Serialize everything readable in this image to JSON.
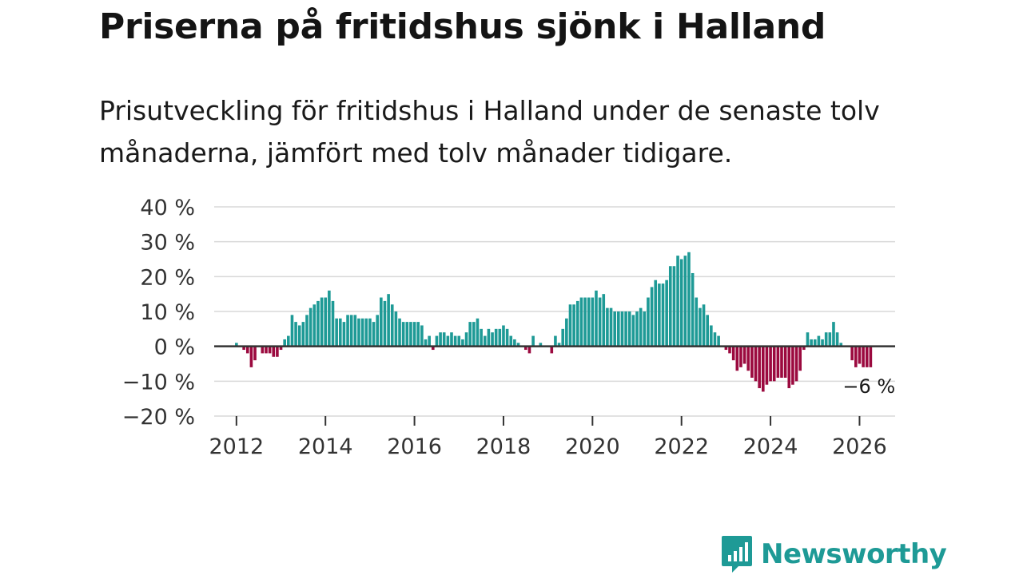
{
  "title": "Priserna på fritidshus sjönk i Halland",
  "subtitle": "Prisutveckling för fritidshus i Halland under de senaste tolv månaderna, jämfört med tolv månader tidigare.",
  "brand": {
    "name": "Newsworthy",
    "icon": "newsworthy-logo-icon"
  },
  "colors": {
    "positive": "#1e9a96",
    "negative": "#9b0a3f",
    "grid": "#d9d9d9",
    "zero": "#333333",
    "brand": "#1e9a96"
  },
  "chart_data": {
    "type": "bar",
    "title": "Priserna på fritidshus sjönk i Halland",
    "xlabel": "",
    "ylabel": "",
    "ylim": [
      -20,
      40
    ],
    "xlim": [
      2011.5,
      2026.8
    ],
    "y_ticks": [
      40,
      30,
      20,
      10,
      0,
      -10,
      -20
    ],
    "y_tick_labels": [
      "40 %",
      "30 %",
      "20 %",
      "10 %",
      "0 %",
      "−10 %",
      "−20 %"
    ],
    "x_ticks": [
      2012,
      2014,
      2016,
      2018,
      2020,
      2022,
      2024,
      2026
    ],
    "x_tick_labels": [
      "2012",
      "2014",
      "2016",
      "2018",
      "2020",
      "2022",
      "2024",
      "2026"
    ],
    "start": {
      "year": 2012,
      "month": 1
    },
    "frequency": "monthly",
    "values": [
      1,
      0,
      -1,
      -2,
      -6,
      -4,
      0,
      -2,
      -2,
      -2,
      -3,
      -3,
      -1,
      2,
      3,
      9,
      7,
      6,
      7,
      9,
      11,
      12,
      13,
      14,
      14,
      16,
      13,
      8,
      8,
      7,
      9,
      9,
      9,
      8,
      8,
      8,
      8,
      7,
      9,
      14,
      13,
      15,
      12,
      10,
      8,
      7,
      7,
      7,
      7,
      7,
      6,
      2,
      3,
      -1,
      3,
      4,
      4,
      3,
      4,
      3,
      3,
      2,
      4,
      7,
      7,
      8,
      5,
      3,
      5,
      4,
      5,
      5,
      6,
      5,
      3,
      2,
      1,
      0,
      -1,
      -2,
      3,
      0,
      1,
      0,
      0,
      -2,
      3,
      1,
      5,
      8,
      12,
      12,
      13,
      14,
      14,
      14,
      14,
      16,
      14,
      15,
      11,
      11,
      10,
      10,
      10,
      10,
      10,
      9,
      10,
      11,
      10,
      14,
      17,
      19,
      18,
      18,
      19,
      23,
      23,
      26,
      25,
      26,
      27,
      21,
      14,
      11,
      12,
      9,
      6,
      4,
      3,
      0,
      -1,
      -2,
      -4,
      -7,
      -6,
      -5,
      -7,
      -9,
      -10,
      -12,
      -13,
      -11,
      -10,
      -10,
      -9,
      -9,
      -9,
      -12,
      -11,
      -10,
      -7,
      -1,
      4,
      2,
      2,
      3,
      2,
      4,
      4,
      7,
      4,
      1,
      0,
      0,
      -4,
      -6,
      -5,
      -6,
      -6,
      -6
    ],
    "series": [
      {
        "name": "Prisutveckling",
        "values_ref": "values"
      }
    ],
    "annotation": {
      "text": "−6 %",
      "target": "last"
    }
  }
}
